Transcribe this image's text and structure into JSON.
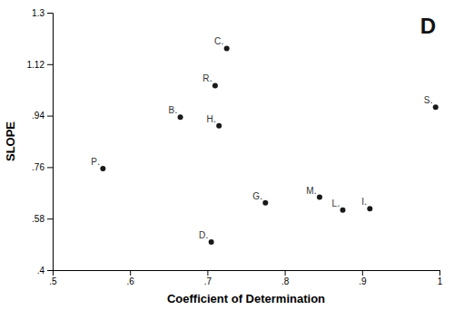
{
  "chart_data": {
    "type": "scatter",
    "x": [
      0.995,
      0.715,
      0.665,
      0.71,
      0.725,
      0.565,
      0.875,
      0.845,
      0.775,
      0.705,
      0.91
    ],
    "y": [
      0.97,
      0.905,
      0.935,
      1.045,
      1.175,
      0.755,
      0.61,
      0.655,
      0.635,
      0.498,
      0.615
    ],
    "labels": [
      "S․",
      "H․",
      "B․",
      "R․",
      "C․",
      "P․",
      "L․",
      "M․",
      "G․",
      "D․",
      "I․"
    ],
    "color": "#1a1a1a",
    "xlabel": "Coefficient of Determination",
    "ylabel": "SLOPE",
    "annotation": "D",
    "xlim": [
      0.5,
      1.0
    ],
    "ylim": [
      0.4,
      1.3
    ],
    "xticks": [
      {
        "value": 0.5,
        "label": ".5"
      },
      {
        "value": 0.6,
        "label": ".6"
      },
      {
        "value": 0.7,
        "label": ".7"
      },
      {
        "value": 0.8,
        "label": ".8"
      },
      {
        "value": 0.9,
        "label": ".9"
      },
      1
    ],
    "yticks": [
      {
        "value": 0.4,
        "label": ".4"
      },
      {
        "value": 0.58,
        "label": ".58"
      },
      {
        "value": 0.76,
        "label": ".76"
      },
      {
        "value": 0.94,
        "label": ".94"
      },
      1.12,
      1.3
    ],
    "grid": false
  }
}
